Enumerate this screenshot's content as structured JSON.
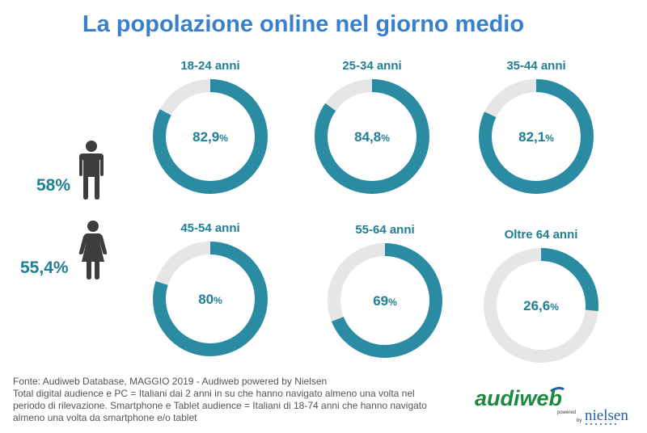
{
  "title": "La popolazione online nel giorno medio",
  "chart_data": {
    "type": "pie",
    "title": "La popolazione online nel giorno medio",
    "series": [
      {
        "name": "18-24 anni",
        "value": 82.9,
        "display": "82,9"
      },
      {
        "name": "25-34 anni",
        "value": 84.8,
        "display": "84,8"
      },
      {
        "name": "35-44 anni",
        "value": 82.1,
        "display": "82,1"
      },
      {
        "name": "45-54 anni",
        "value": 80,
        "display": "80"
      },
      {
        "name": "55-64 anni",
        "value": 69,
        "display": "69"
      },
      {
        "name": "Oltre 64 anni",
        "value": 26.6,
        "display": "26,6"
      }
    ],
    "percent_sign": "%",
    "colors": {
      "filled": "#2a8ba3",
      "remaining": "#e6e6e6"
    }
  },
  "gender": {
    "male": {
      "value": "58%",
      "icon": "male-person-icon"
    },
    "female": {
      "value": "55,4%",
      "icon": "female-person-icon"
    }
  },
  "footer": {
    "source": "Fonte: Audiweb Database, MAGGIO 2019 - Audiweb powered by Nielsen",
    "line1": "Total digital audience e PC = Italiani dai 2 anni in su che hanno navigato almeno una volta nel",
    "line2": "periodo di rilevazione. Smartphone e Tablet audience = Italiani di 18-74 anni che hanno navigato",
    "line3": "almeno una volta da smartphone e/o tablet"
  },
  "logo": {
    "name": "audiweb",
    "powered": "powered",
    "by": "by",
    "partner": "nielsen"
  }
}
